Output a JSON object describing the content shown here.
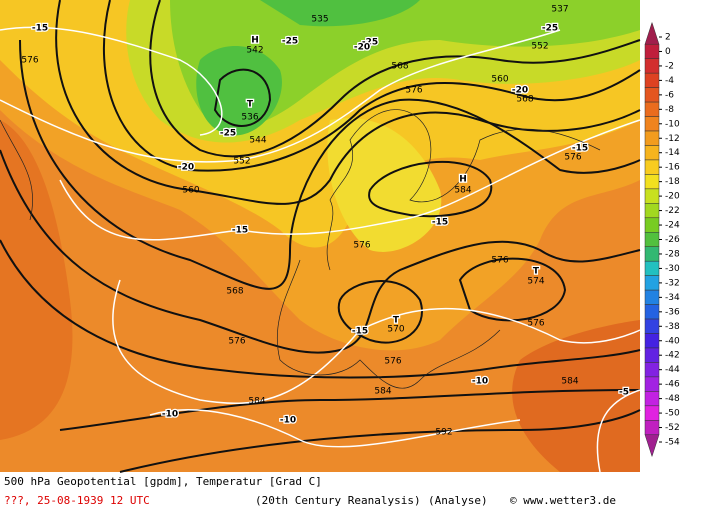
{
  "map": {
    "labels": [
      "-15",
      "576",
      "H",
      "542",
      "T",
      "536",
      "535",
      "-25",
      "-25",
      "-20",
      "552",
      "544",
      "-25",
      "-20",
      "560",
      "568",
      "576",
      "560",
      "537",
      "-25",
      "552",
      "-20",
      "568",
      "-15",
      "576",
      "H",
      "584",
      "-15",
      "-15",
      "576",
      "576",
      "T",
      "574",
      "568",
      "576",
      "T",
      "570",
      "-15",
      "576",
      "576",
      "584",
      "-10",
      "584",
      "-10",
      "584",
      "-10",
      "592",
      "-5"
    ]
  },
  "colorbar": {
    "ticks": [
      2,
      0,
      -2,
      -4,
      -6,
      -8,
      -10,
      -12,
      -14,
      -16,
      -18,
      -20,
      -22,
      -24,
      -26,
      -28,
      -30,
      -32,
      -34,
      -36,
      -38,
      -40,
      -42,
      -44,
      -46,
      -48,
      -50,
      -52,
      -54
    ],
    "colors": [
      "#a01e4c",
      "#c01e3c",
      "#d22e2e",
      "#de4222",
      "#e45620",
      "#ea6c1e",
      "#f0841e",
      "#f29c1e",
      "#f6b41e",
      "#f8cc20",
      "#f2e020",
      "#c8e020",
      "#a2d820",
      "#78cc22",
      "#52c03e",
      "#32b872",
      "#22c0c0",
      "#22a2e2",
      "#2282e2",
      "#2462e2",
      "#3242e2",
      "#4422e2",
      "#6222e2",
      "#8222e2",
      "#a222e2",
      "#c222e2",
      "#e022e0",
      "#c020c0",
      "#a02090"
    ]
  },
  "footer": {
    "title": "500 hPa Geopotential [gpdm], Temperatur [Grad C]",
    "date": "???, 25-08-1939  12 UTC",
    "source": "(20th Century Reanalysis)",
    "kind": "(Analyse)",
    "credit": "© www.wetter3.de"
  }
}
